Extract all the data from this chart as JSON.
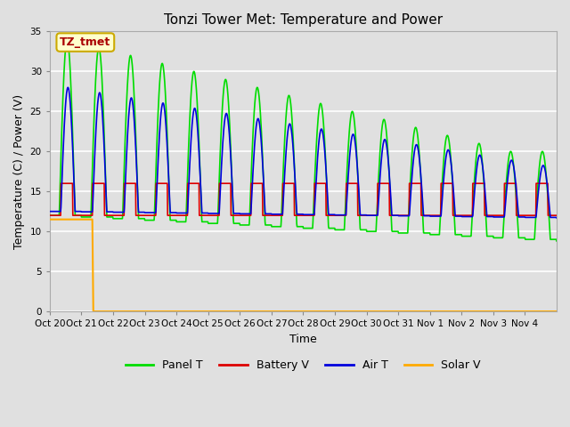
{
  "title": "Tonzi Tower Met: Temperature and Power",
  "xlabel": "Time",
  "ylabel": "Temperature (C) / Power (V)",
  "ylim": [
    0,
    35
  ],
  "yticks": [
    0,
    5,
    10,
    15,
    20,
    25,
    30,
    35
  ],
  "xtick_labels": [
    "Oct 20",
    "Oct 21",
    "Oct 22",
    "Oct 23",
    "Oct 24",
    "Oct 25",
    "Oct 26",
    "Oct 27",
    "Oct 28",
    "Oct 29",
    "Oct 30",
    "Oct 31",
    "Nov 1",
    "Nov 2",
    "Nov 3",
    "Nov 4"
  ],
  "bg_color": "#e0e0e0",
  "plot_bg_color": "#e0e0e0",
  "grid_color": "#ffffff",
  "annotation_text": "TZ_tmet",
  "annotation_bg": "#ffffcc",
  "annotation_border": "#ccaa00",
  "annotation_text_color": "#aa0000",
  "colors": {
    "Panel T": "#00dd00",
    "Battery V": "#dd0000",
    "Air T": "#0000dd",
    "Solar V": "#ffaa00"
  },
  "legend_labels": [
    "Panel T",
    "Battery V",
    "Air T",
    "Solar V"
  ],
  "n_days": 16,
  "pts_per_day": 96
}
